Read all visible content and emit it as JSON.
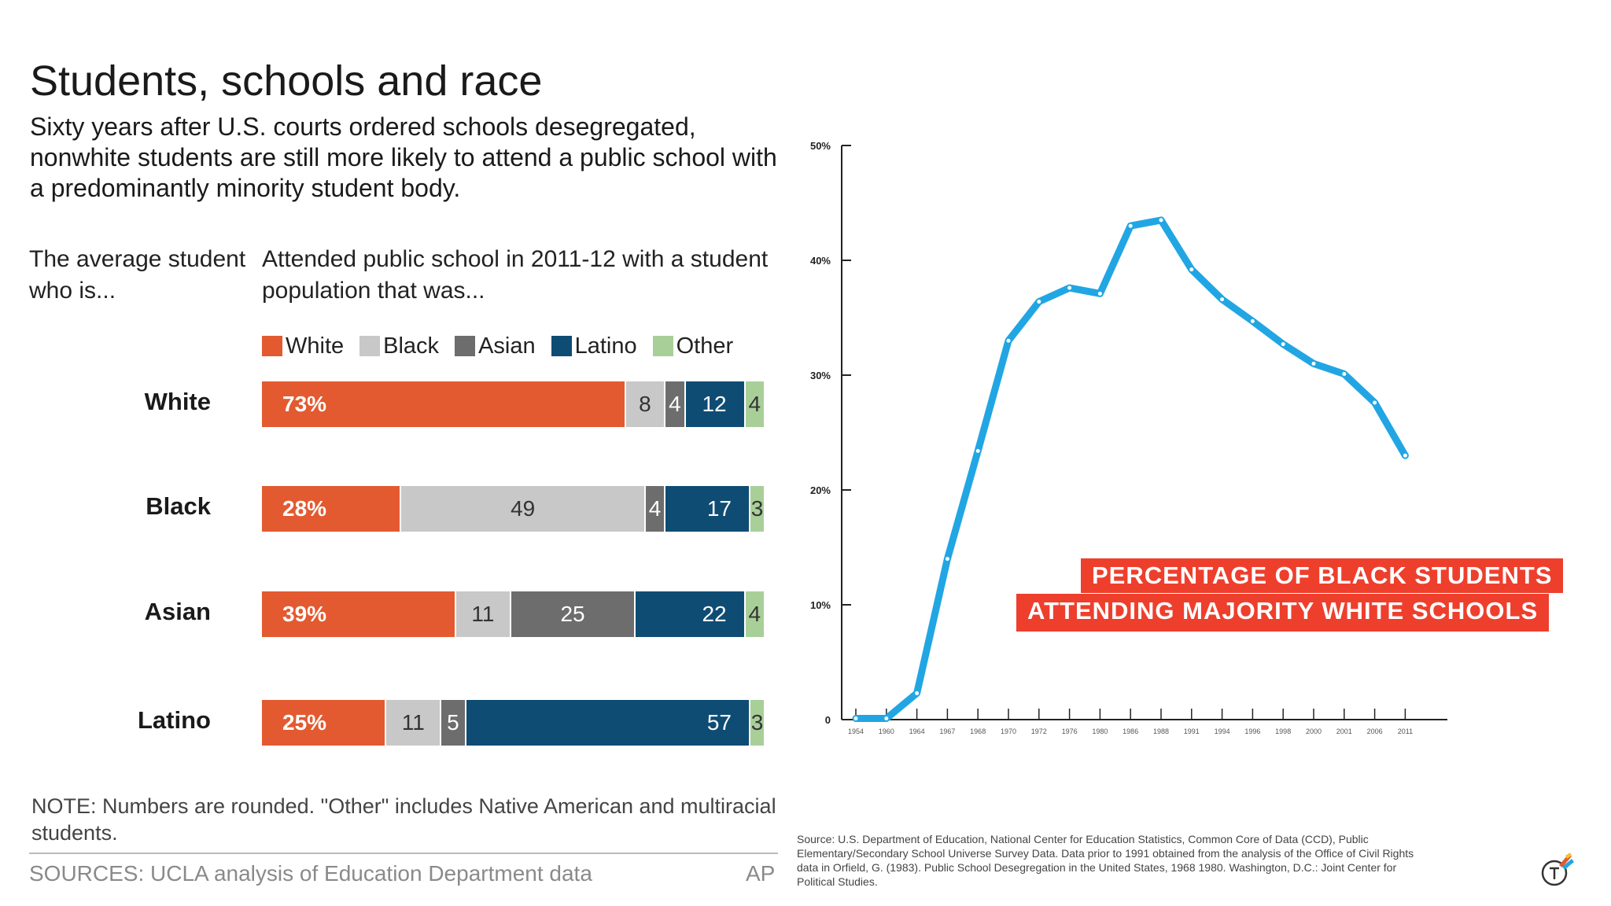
{
  "title": "Students, schools and race",
  "subtitle": "Sixty years after U.S. courts ordered schools desegregated, nonwhite students are still more likely to attend a public school with a predominantly minority student body.",
  "left_label": "The average student who is...",
  "chart_label": "Attended public school in 2011-12 with a student population that was...",
  "note": "NOTE: Numbers are rounded. \"Other\" includes Native American and multiracial students.",
  "sources": "SOURCES: UCLA analysis of Education Department data",
  "credit": "AP",
  "callout": [
    "PERCENTAGE OF BLACK STUDENTS",
    "ATTENDING MAJORITY WHITE SCHOOLS"
  ],
  "source_note": "Source: U.S. Department of Education, National Center for Education Statistics, Common Core of Data (CCD), Public Elementary/Secondary School Universe Survey Data. Data prior to 1991 obtained from the analysis of the Office of Civil Rights data in Orfield, G. (1983). Public School Desegregation in the United States, 1968 1980. Washington, D.C.: Joint Center for Political Studies.",
  "colors": {
    "White": "#e35a30",
    "Black": "#c8c8c8",
    "Asian": "#6d6d6d",
    "Latino": "#0f4c74",
    "Other": "#a9cf99",
    "line": "#21a6e3",
    "callout": "#ee3f2d"
  },
  "chart_data": [
    {
      "type": "bar",
      "orientation": "horizontal",
      "stacked": true,
      "categories": [
        "White",
        "Black",
        "Asian",
        "Latino"
      ],
      "series": [
        {
          "name": "White",
          "values": [
            73,
            28,
            39,
            25
          ],
          "labels": [
            "73%",
            "28%",
            "39%",
            "25%"
          ]
        },
        {
          "name": "Black",
          "values": [
            8,
            49,
            11,
            11
          ],
          "labels": [
            "8",
            "49",
            "11",
            "11"
          ]
        },
        {
          "name": "Asian",
          "values": [
            4,
            4,
            25,
            5
          ],
          "labels": [
            "4",
            "4",
            "25",
            "5"
          ]
        },
        {
          "name": "Latino",
          "values": [
            12,
            17,
            22,
            57
          ],
          "labels": [
            "12",
            "17",
            "22",
            "57"
          ]
        },
        {
          "name": "Other",
          "values": [
            4,
            3,
            4,
            3
          ],
          "labels": [
            "4",
            "3",
            "4",
            "3"
          ]
        }
      ],
      "legend": "top"
    },
    {
      "type": "line",
      "title": "PERCENTAGE OF BLACK STUDENTS ATTENDING MAJORITY WHITE SCHOOLS",
      "ylim": [
        0,
        50
      ],
      "yticks": [
        "0",
        "10%",
        "20%",
        "30%",
        "40%",
        "50%"
      ],
      "xticks": [
        "1954",
        "1960",
        "1964",
        "1967",
        "1968",
        "1970",
        "1972",
        "1976",
        "1980",
        "1986",
        "1988",
        "1991",
        "1994",
        "1996",
        "1998",
        "2000",
        "2001",
        "2006",
        "2011"
      ],
      "series": [
        {
          "values": [
            0.1,
            0.1,
            2.3,
            14,
            23.4,
            33,
            36.4,
            37.6,
            37.1,
            43,
            43.5,
            39.2,
            36.6,
            34.7,
            32.7,
            31,
            30.1,
            27.6,
            23
          ]
        }
      ]
    }
  ]
}
